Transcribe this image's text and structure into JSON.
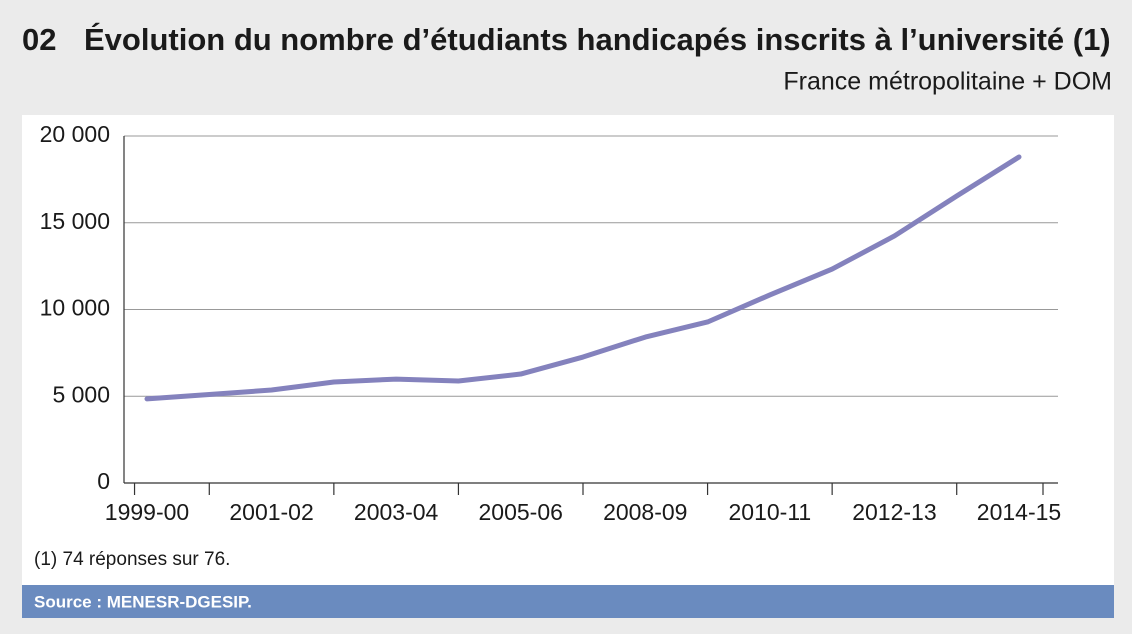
{
  "chart_data": {
    "type": "line",
    "number": "02",
    "title": "Évolution du nombre d’étudiants handicapés inscrits à l’université (1)",
    "subtitle": "France métropolitaine + DOM",
    "categories": [
      "1999-00",
      null,
      "2001-02",
      null,
      "2003-04",
      null,
      "2005-06",
      null,
      "2008-09",
      null,
      "2010-11",
      null,
      "2012-13",
      null,
      "2014-15"
    ],
    "series": [
      {
        "name": "Étudiants handicapés",
        "color": "#8482bd",
        "values": [
          4850,
          5100,
          5360,
          5820,
          5990,
          5880,
          6280,
          7260,
          8410,
          9280,
          10840,
          12330,
          14240,
          16540,
          18790
        ]
      }
    ],
    "ylim": [
      0,
      20000
    ],
    "yticks": [
      0,
      {
        "value": 5000,
        "label": "5 000"
      },
      {
        "value": 10000,
        "label": "10 000"
      },
      {
        "value": 15000,
        "label": "15 000"
      },
      {
        "value": 20000,
        "label": "20 000"
      }
    ],
    "grid": true,
    "footnote": "(1) 74 réponses sur 76.",
    "source": "Source : MENESR-DGESIP."
  }
}
